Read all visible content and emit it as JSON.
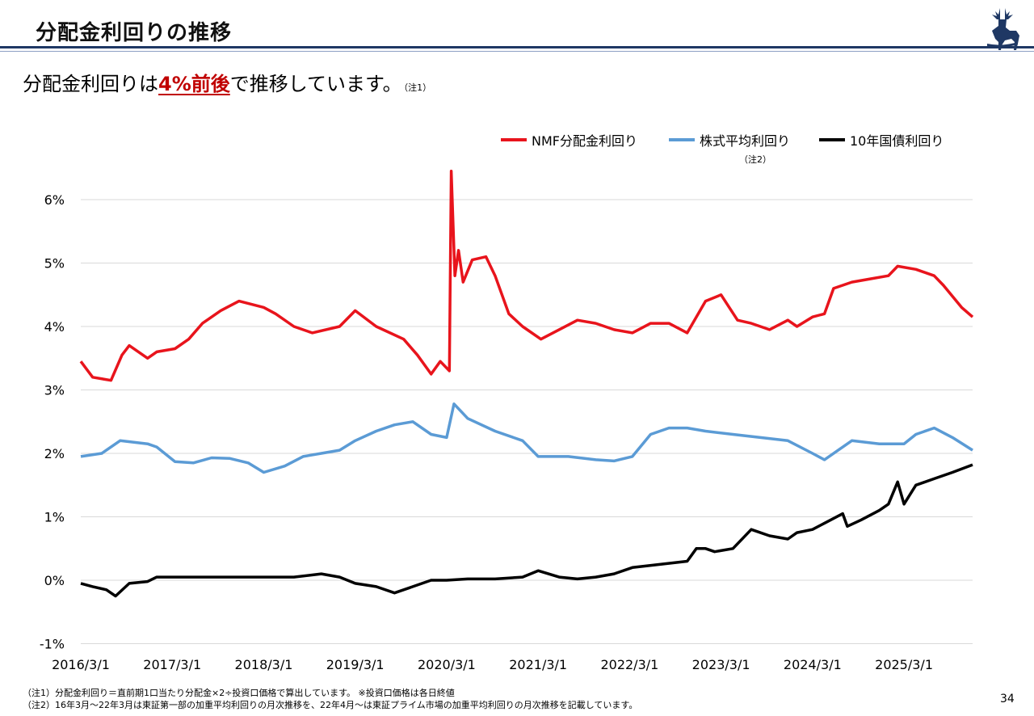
{
  "header": {
    "title": "分配金利回りの推移",
    "subtitle_before": "分配金利回りは",
    "subtitle_highlight": "4%前後",
    "subtitle_after": "で推移しています。",
    "subtitle_note": "（注1）"
  },
  "colors": {
    "nmf": "#e8141c",
    "stock": "#5b9bd5",
    "jgb": "#000000",
    "rule": "#1f3864",
    "highlight": "#c00000"
  },
  "chart_data": {
    "type": "line",
    "title": "",
    "xlabel": "",
    "ylabel": "",
    "ylim": [
      -1,
      6.5
    ],
    "yticks": [
      -1,
      0,
      1,
      2,
      3,
      4,
      5,
      6
    ],
    "ytick_labels": [
      "-1%",
      "0%",
      "1%",
      "2%",
      "3%",
      "4%",
      "5%",
      "6%"
    ],
    "xlim": [
      2016.17,
      2025.92
    ],
    "xticks": [
      2016.17,
      2017.17,
      2018.17,
      2019.17,
      2020.17,
      2021.17,
      2022.17,
      2023.17,
      2024.17,
      2025.17
    ],
    "xtick_labels": [
      "2016/3/1",
      "2017/3/1",
      "2018/3/1",
      "2019/3/1",
      "2020/3/1",
      "2021/3/1",
      "2022/3/1",
      "2023/3/1",
      "2024/3/1",
      "2025/3/1"
    ],
    "grid": true,
    "legend_position": "top-right",
    "series": [
      {
        "name": "NMF分配金利回り",
        "color": "#e8141c",
        "x": [
          2016.17,
          2016.3,
          2016.5,
          2016.62,
          2016.7,
          2016.9,
          2017.0,
          2017.2,
          2017.35,
          2017.5,
          2017.7,
          2017.9,
          2018.17,
          2018.3,
          2018.5,
          2018.7,
          2019.0,
          2019.17,
          2019.4,
          2019.7,
          2019.85,
          2020.0,
          2020.1,
          2020.2,
          2020.22,
          2020.26,
          2020.3,
          2020.35,
          2020.45,
          2020.6,
          2020.7,
          2020.85,
          2021.0,
          2021.2,
          2021.4,
          2021.6,
          2021.8,
          2022.0,
          2022.2,
          2022.4,
          2022.6,
          2022.8,
          2023.0,
          2023.17,
          2023.35,
          2023.5,
          2023.7,
          2023.9,
          2024.0,
          2024.17,
          2024.3,
          2024.4,
          2024.6,
          2024.8,
          2025.0,
          2025.1,
          2025.3,
          2025.5,
          2025.6,
          2025.8,
          2025.92
        ],
        "values": [
          3.45,
          3.2,
          3.15,
          3.55,
          3.7,
          3.5,
          3.6,
          3.65,
          3.8,
          4.05,
          4.25,
          4.4,
          4.3,
          4.2,
          4.0,
          3.9,
          4.0,
          4.25,
          4.0,
          3.8,
          3.55,
          3.25,
          3.45,
          3.3,
          6.45,
          4.8,
          5.2,
          4.7,
          5.05,
          5.1,
          4.8,
          4.2,
          4.0,
          3.8,
          3.95,
          4.1,
          4.05,
          3.95,
          3.9,
          4.05,
          4.05,
          3.9,
          4.4,
          4.5,
          4.1,
          4.05,
          3.95,
          4.1,
          4.0,
          4.15,
          4.2,
          4.6,
          4.7,
          4.75,
          4.8,
          4.95,
          4.9,
          4.8,
          4.65,
          4.3,
          4.15
        ]
      },
      {
        "name": "株式平均利回り",
        "color": "#5b9bd5",
        "x": [
          2016.17,
          2016.4,
          2016.6,
          2016.9,
          2017.0,
          2017.2,
          2017.4,
          2017.6,
          2017.8,
          2018.0,
          2018.17,
          2018.4,
          2018.6,
          2018.8,
          2019.0,
          2019.17,
          2019.4,
          2019.6,
          2019.8,
          2020.0,
          2020.17,
          2020.25,
          2020.4,
          2020.7,
          2021.0,
          2021.17,
          2021.5,
          2021.8,
          2022.0,
          2022.2,
          2022.4,
          2022.6,
          2022.8,
          2023.0,
          2023.3,
          2023.6,
          2023.9,
          2024.17,
          2024.3,
          2024.45,
          2024.6,
          2024.9,
          2025.17,
          2025.3,
          2025.5,
          2025.7,
          2025.92
        ],
        "values": [
          1.95,
          2.0,
          2.2,
          2.15,
          2.1,
          1.87,
          1.85,
          1.93,
          1.92,
          1.85,
          1.7,
          1.8,
          1.95,
          2.0,
          2.05,
          2.2,
          2.35,
          2.45,
          2.5,
          2.3,
          2.25,
          2.78,
          2.55,
          2.35,
          2.2,
          1.95,
          1.95,
          1.9,
          1.88,
          1.95,
          2.3,
          2.4,
          2.4,
          2.35,
          2.3,
          2.25,
          2.2,
          2.0,
          1.9,
          2.05,
          2.2,
          2.15,
          2.15,
          2.3,
          2.4,
          2.25,
          2.05
        ]
      },
      {
        "name": "10年国債利回り",
        "color": "#000000",
        "x": [
          2016.17,
          2016.3,
          2016.45,
          2016.55,
          2016.7,
          2016.9,
          2017.0,
          2017.3,
          2017.6,
          2017.9,
          2018.17,
          2018.5,
          2018.8,
          2019.0,
          2019.17,
          2019.4,
          2019.6,
          2019.8,
          2020.0,
          2020.17,
          2020.4,
          2020.7,
          2021.0,
          2021.17,
          2021.4,
          2021.6,
          2021.8,
          2022.0,
          2022.2,
          2022.5,
          2022.8,
          2022.9,
          2023.0,
          2023.1,
          2023.3,
          2023.5,
          2023.7,
          2023.9,
          2024.0,
          2024.17,
          2024.3,
          2024.5,
          2024.55,
          2024.7,
          2024.9,
          2025.0,
          2025.1,
          2025.17,
          2025.3,
          2025.5,
          2025.7,
          2025.92
        ],
        "values": [
          -0.05,
          -0.1,
          -0.15,
          -0.25,
          -0.05,
          -0.02,
          0.05,
          0.05,
          0.05,
          0.05,
          0.05,
          0.05,
          0.1,
          0.05,
          -0.05,
          -0.1,
          -0.2,
          -0.1,
          0.0,
          0.0,
          0.02,
          0.02,
          0.05,
          0.15,
          0.05,
          0.02,
          0.05,
          0.1,
          0.2,
          0.25,
          0.3,
          0.5,
          0.5,
          0.45,
          0.5,
          0.8,
          0.7,
          0.65,
          0.75,
          0.8,
          0.9,
          1.05,
          0.85,
          0.95,
          1.1,
          1.2,
          1.55,
          1.2,
          1.5,
          1.6,
          1.7,
          1.82
        ]
      }
    ]
  },
  "footnotes": [
    "（注1）分配金利回り＝直前期1口当たり分配金×2÷投資口価格で算出しています。 ※投資口価格は各日終値",
    "（注2）16年3月～22年3月は東証第一部の加重平均利回りの月次推移を、22年4月～は東証プライム市場の加重平均利回りの月次推移を記載しています。"
  ],
  "legend_note": "（注2）",
  "page_number": "34",
  "logo": "deer-logo"
}
